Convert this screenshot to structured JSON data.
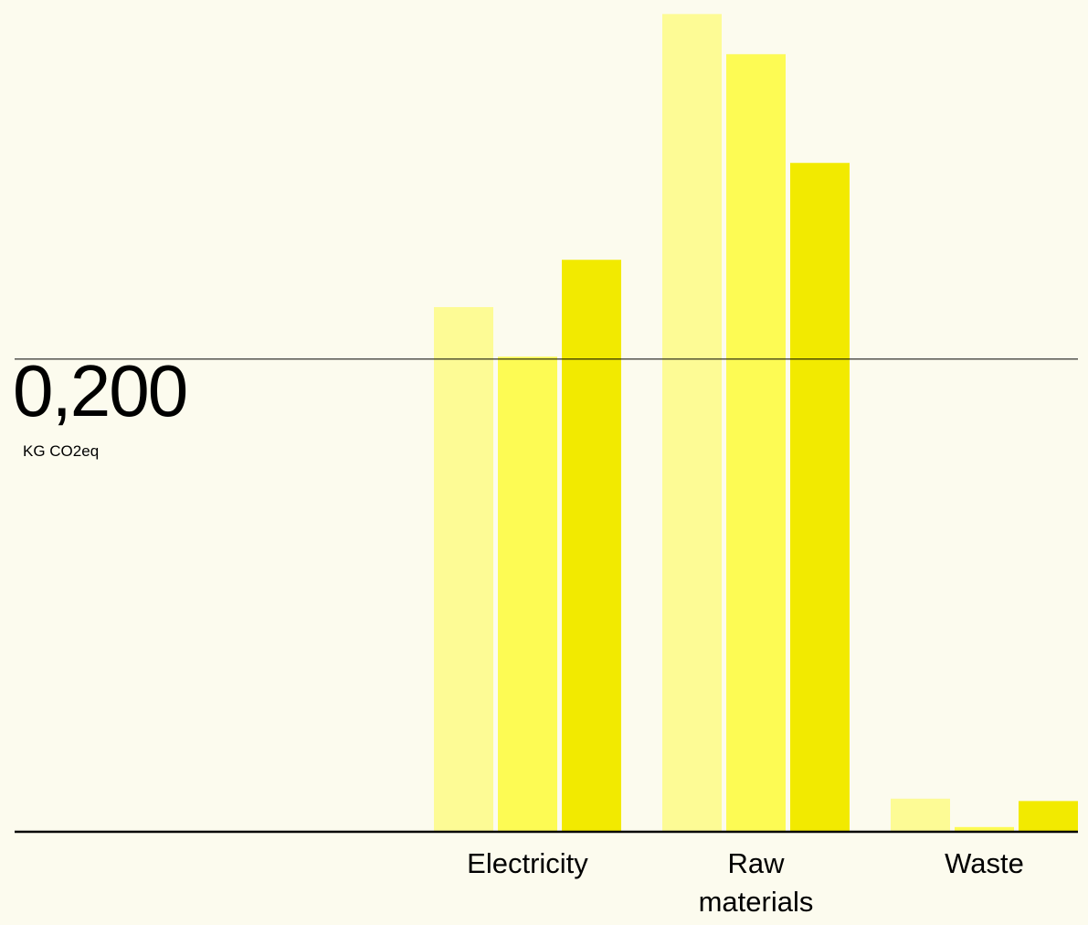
{
  "chart_data": {
    "type": "bar",
    "categories": [
      "Electricity",
      "Raw\nmaterials",
      "Waste"
    ],
    "series": [
      {
        "values": [
          0.222,
          0.346,
          0.014
        ]
      },
      {
        "values": [
          0.201,
          0.329,
          0.002
        ]
      },
      {
        "values": [
          0.242,
          0.283,
          0.013
        ]
      }
    ],
    "colors": [
      "#fdfb95",
      "#fdfb54",
      "#f2ea00"
    ],
    "reference_value": 0.2,
    "reference_label": "0,200",
    "unit_label": "KG CO2eq",
    "ylim": [
      0,
      0.35
    ],
    "grid": false
  }
}
